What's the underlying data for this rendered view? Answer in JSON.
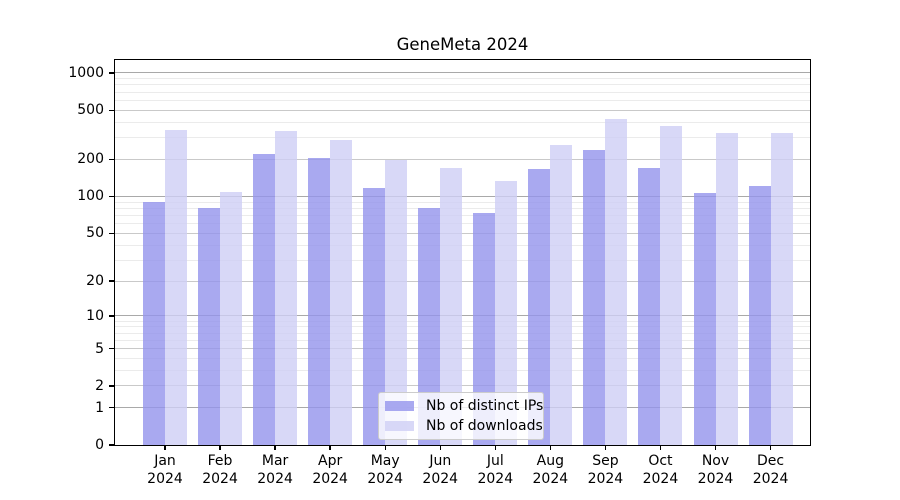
{
  "chart_data": {
    "type": "bar",
    "title": "GeneMeta 2024",
    "yscale": "log1p",
    "y_ticks": [
      0,
      1,
      2,
      5,
      10,
      20,
      50,
      100,
      200,
      500,
      1000
    ],
    "ylim": [
      0,
      1270
    ],
    "grid": {
      "decade": "#a9a9a9",
      "labeled": "#c9c9c9",
      "minor": "#ebebeb"
    },
    "categories": [
      "Jan",
      "Feb",
      "Mar",
      "Apr",
      "May",
      "Jun",
      "Jul",
      "Aug",
      "Sep",
      "Oct",
      "Nov",
      "Dec"
    ],
    "category_sublabel": "2024",
    "series": [
      {
        "name": "Nb of distinct IPs",
        "color": "#a9a9f0",
        "color_rgba": "rgba(148,148,236,0.8)",
        "values": [
          90,
          81,
          222,
          205,
          118,
          80,
          74,
          166,
          240,
          170,
          106,
          122
        ]
      },
      {
        "name": "Nb of downloads",
        "color": "#d8d8f7",
        "color_rgba": "rgba(206,206,245,0.8)",
        "values": [
          345,
          109,
          338,
          286,
          197,
          172,
          133,
          262,
          425,
          375,
          328,
          330
        ]
      }
    ],
    "legend_position": "lower center"
  }
}
